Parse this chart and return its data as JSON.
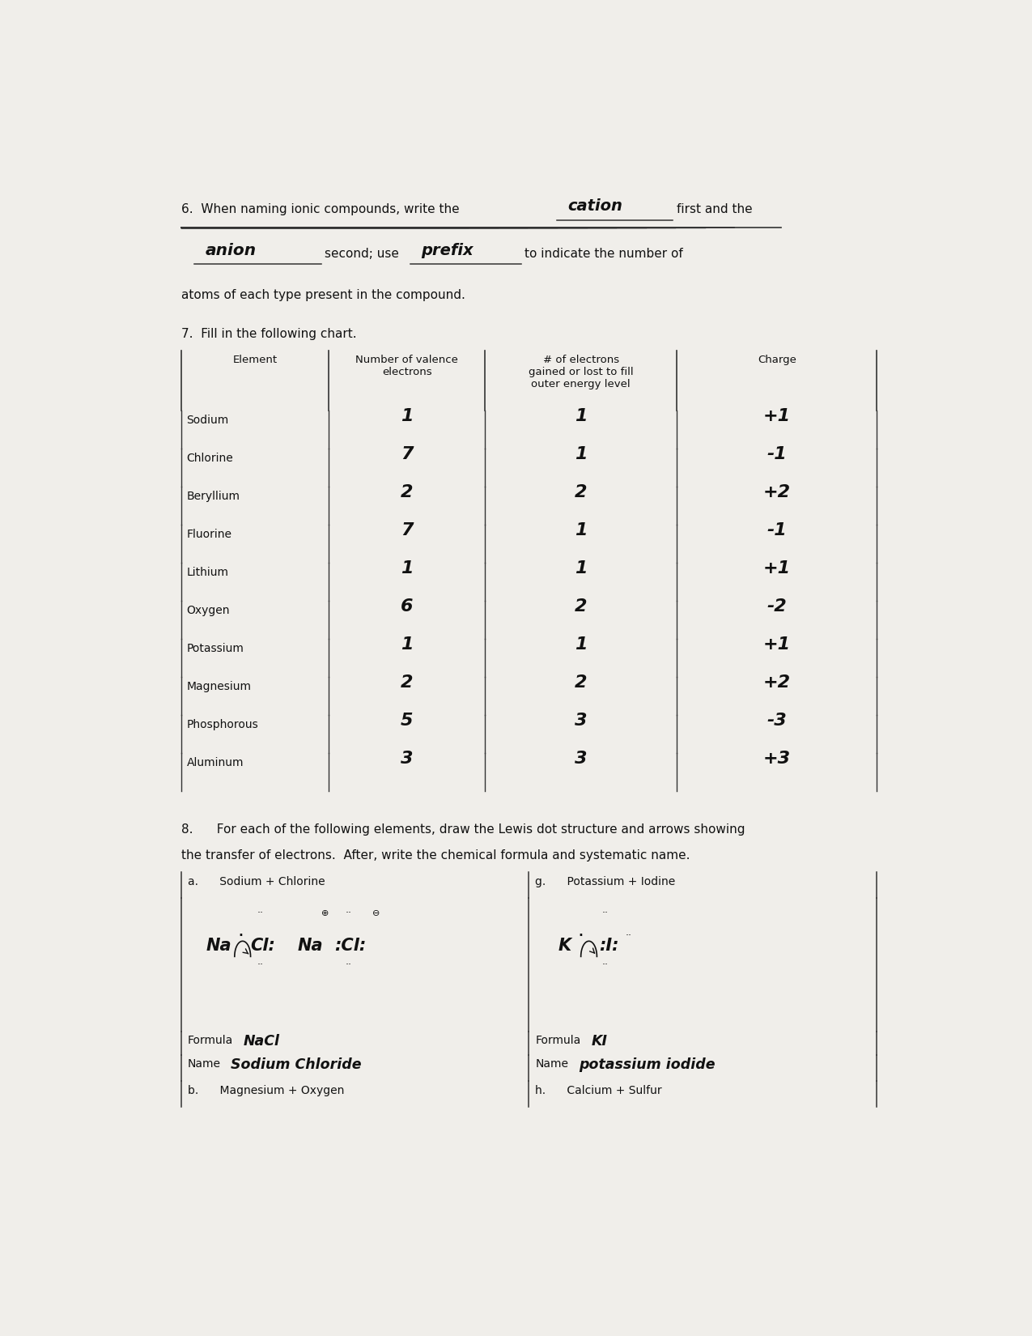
{
  "bg_color": "#f0eeea",
  "page_width": 12.75,
  "page_height": 16.5,
  "q6": {
    "line1_print": "6.  When naming ionic compounds, write the",
    "blank1": "cation",
    "line1_end": "first and the",
    "blank2": "anion",
    "line2_mid": "second; use",
    "blank3": "prefix",
    "line2_end": "to indicate the number of",
    "line3": "atoms of each type present in the compound."
  },
  "q7": {
    "label": "7.  Fill in the following chart.",
    "headers": [
      "Element",
      "Number of valence\nelectrons",
      "# of electrons\ngained or lost to fill\nouter energy level",
      "Charge"
    ],
    "rows": [
      [
        "Sodium",
        "1",
        "1",
        "+1"
      ],
      [
        "Chlorine",
        "7",
        "1",
        "-1"
      ],
      [
        "Beryllium",
        "2",
        "2",
        "+2"
      ],
      [
        "Fluorine",
        "7",
        "1",
        "-1"
      ],
      [
        "Lithium",
        "1",
        "1",
        "+1"
      ],
      [
        "Oxygen",
        "6",
        "2",
        "-2"
      ],
      [
        "Potassium",
        "1",
        "1",
        "+1"
      ],
      [
        "Magnesium",
        "2",
        "2",
        "+2"
      ],
      [
        "Phosphorous",
        "5",
        "3",
        "-3"
      ],
      [
        "Aluminum",
        "3",
        "3",
        "+3"
      ]
    ]
  },
  "q8": {
    "line1": "8.      For each of the following elements, draw the Lewis dot structure and arrows showing",
    "line2": "the transfer of electrons.  After, write the chemical formula and systematic name.",
    "label_a": "a.      Sodium + Chlorine",
    "label_g": "g.      Potassium + Iodine",
    "formula_a": "NaCl",
    "name_a": "Sodium Chloride",
    "formula_g": "KI",
    "name_g": "potassium iodide",
    "label_b": "b.      Magnesium + Oxygen",
    "label_h": "h.      Calcium + Sulfur"
  }
}
